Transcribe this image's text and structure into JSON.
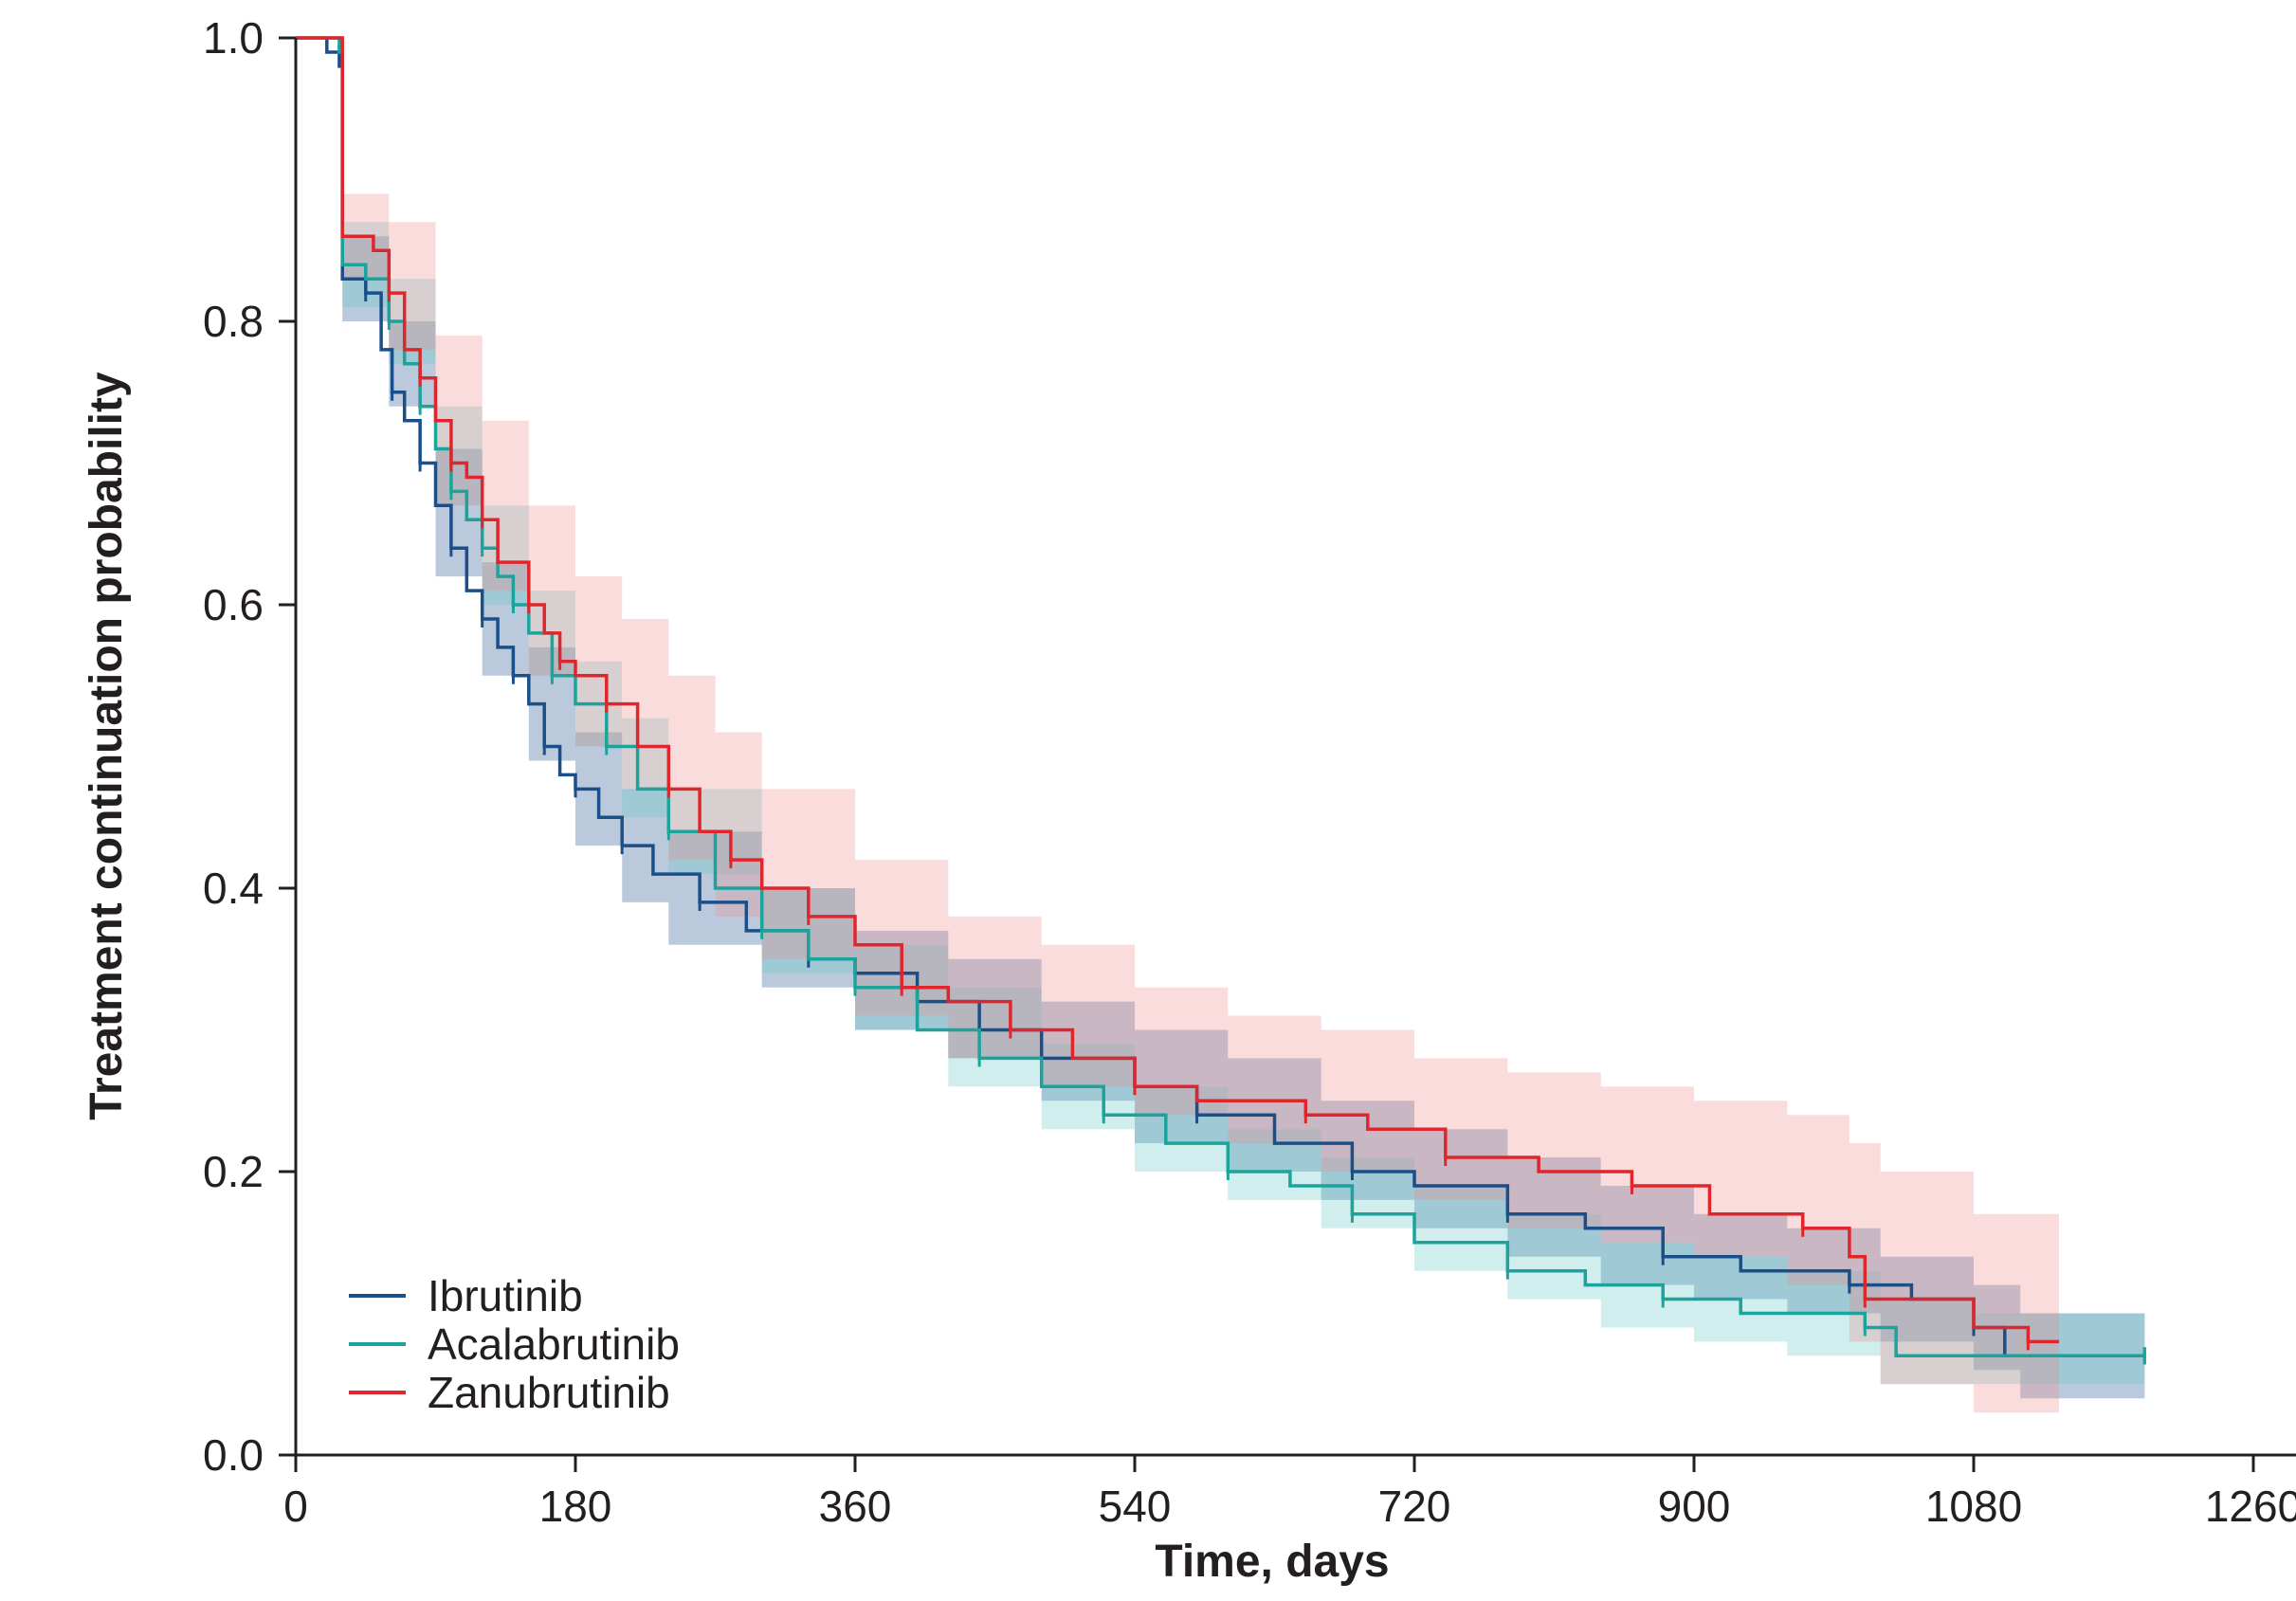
{
  "chart_data": {
    "type": "line",
    "subtype": "kaplan-meier step curves with confidence bands",
    "title": "",
    "xlabel": "Time, days",
    "ylabel": "Treatment continuation probability",
    "xlim": [
      0,
      1260
    ],
    "ylim": [
      0.0,
      1.0
    ],
    "x_ticks": [
      "0",
      "180",
      "360",
      "540",
      "720",
      "900",
      "1080",
      "1260"
    ],
    "y_ticks": [
      "0.0",
      "0.2",
      "0.4",
      "0.6",
      "0.8",
      "1.0"
    ],
    "grid": false,
    "legend_position": "bottom-left",
    "series": [
      {
        "name": "Ibrutinib",
        "color": "#1b4f8a",
        "band_color": "#1b4f8a",
        "points": [
          [
            0,
            1.0
          ],
          [
            20,
            0.99
          ],
          [
            28,
            0.98
          ],
          [
            30,
            0.83
          ],
          [
            45,
            0.82
          ],
          [
            55,
            0.78
          ],
          [
            62,
            0.75
          ],
          [
            70,
            0.73
          ],
          [
            80,
            0.7
          ],
          [
            90,
            0.67
          ],
          [
            100,
            0.64
          ],
          [
            110,
            0.61
          ],
          [
            120,
            0.59
          ],
          [
            130,
            0.57
          ],
          [
            140,
            0.55
          ],
          [
            150,
            0.53
          ],
          [
            160,
            0.5
          ],
          [
            170,
            0.48
          ],
          [
            180,
            0.47
          ],
          [
            195,
            0.45
          ],
          [
            210,
            0.43
          ],
          [
            230,
            0.41
          ],
          [
            260,
            0.39
          ],
          [
            290,
            0.37
          ],
          [
            330,
            0.35
          ],
          [
            360,
            0.34
          ],
          [
            400,
            0.32
          ],
          [
            440,
            0.3
          ],
          [
            480,
            0.28
          ],
          [
            540,
            0.26
          ],
          [
            580,
            0.24
          ],
          [
            630,
            0.22
          ],
          [
            680,
            0.2
          ],
          [
            720,
            0.19
          ],
          [
            780,
            0.17
          ],
          [
            830,
            0.16
          ],
          [
            880,
            0.14
          ],
          [
            930,
            0.13
          ],
          [
            1000,
            0.12
          ],
          [
            1040,
            0.11
          ],
          [
            1080,
            0.09
          ],
          [
            1100,
            0.07
          ],
          [
            1190,
            0.07
          ]
        ],
        "ci_upper": [
          [
            0,
            1.0
          ],
          [
            30,
            0.86
          ],
          [
            60,
            0.8
          ],
          [
            90,
            0.71
          ],
          [
            120,
            0.63
          ],
          [
            150,
            0.57
          ],
          [
            180,
            0.51
          ],
          [
            210,
            0.47
          ],
          [
            240,
            0.44
          ],
          [
            300,
            0.4
          ],
          [
            360,
            0.37
          ],
          [
            420,
            0.35
          ],
          [
            480,
            0.32
          ],
          [
            540,
            0.3
          ],
          [
            600,
            0.28
          ],
          [
            660,
            0.25
          ],
          [
            720,
            0.23
          ],
          [
            780,
            0.21
          ],
          [
            840,
            0.19
          ],
          [
            900,
            0.17
          ],
          [
            960,
            0.16
          ],
          [
            1020,
            0.14
          ],
          [
            1080,
            0.12
          ],
          [
            1110,
            0.1
          ],
          [
            1190,
            0.1
          ]
        ],
        "ci_lower": [
          [
            0,
            1.0
          ],
          [
            30,
            0.8
          ],
          [
            60,
            0.74
          ],
          [
            90,
            0.62
          ],
          [
            120,
            0.55
          ],
          [
            150,
            0.49
          ],
          [
            180,
            0.43
          ],
          [
            210,
            0.39
          ],
          [
            240,
            0.36
          ],
          [
            300,
            0.33
          ],
          [
            360,
            0.3
          ],
          [
            420,
            0.28
          ],
          [
            480,
            0.25
          ],
          [
            540,
            0.22
          ],
          [
            600,
            0.2
          ],
          [
            660,
            0.18
          ],
          [
            720,
            0.16
          ],
          [
            780,
            0.14
          ],
          [
            840,
            0.12
          ],
          [
            900,
            0.11
          ],
          [
            960,
            0.1
          ],
          [
            1020,
            0.08
          ],
          [
            1080,
            0.06
          ],
          [
            1110,
            0.04
          ],
          [
            1190,
            0.04
          ]
        ]
      },
      {
        "name": "Acalabrutinib",
        "color": "#1ba39c",
        "band_color": "#5fc8c4",
        "points": [
          [
            0,
            1.0
          ],
          [
            28,
            0.99
          ],
          [
            30,
            0.84
          ],
          [
            45,
            0.83
          ],
          [
            60,
            0.8
          ],
          [
            70,
            0.77
          ],
          [
            80,
            0.74
          ],
          [
            90,
            0.71
          ],
          [
            100,
            0.68
          ],
          [
            110,
            0.66
          ],
          [
            120,
            0.64
          ],
          [
            130,
            0.62
          ],
          [
            140,
            0.6
          ],
          [
            150,
            0.58
          ],
          [
            165,
            0.55
          ],
          [
            180,
            0.53
          ],
          [
            200,
            0.5
          ],
          [
            220,
            0.47
          ],
          [
            240,
            0.44
          ],
          [
            270,
            0.4
          ],
          [
            300,
            0.37
          ],
          [
            330,
            0.35
          ],
          [
            360,
            0.33
          ],
          [
            400,
            0.3
          ],
          [
            440,
            0.28
          ],
          [
            480,
            0.26
          ],
          [
            520,
            0.24
          ],
          [
            560,
            0.22
          ],
          [
            600,
            0.2
          ],
          [
            640,
            0.19
          ],
          [
            680,
            0.17
          ],
          [
            720,
            0.15
          ],
          [
            780,
            0.13
          ],
          [
            830,
            0.12
          ],
          [
            880,
            0.11
          ],
          [
            930,
            0.1
          ],
          [
            1010,
            0.09
          ],
          [
            1030,
            0.07
          ],
          [
            1190,
            0.07
          ]
        ],
        "ci_upper": [
          [
            0,
            1.0
          ],
          [
            30,
            0.87
          ],
          [
            60,
            0.83
          ],
          [
            90,
            0.74
          ],
          [
            120,
            0.67
          ],
          [
            150,
            0.61
          ],
          [
            180,
            0.56
          ],
          [
            210,
            0.52
          ],
          [
            240,
            0.47
          ],
          [
            300,
            0.4
          ],
          [
            360,
            0.36
          ],
          [
            420,
            0.33
          ],
          [
            480,
            0.29
          ],
          [
            540,
            0.26
          ],
          [
            600,
            0.23
          ],
          [
            660,
            0.21
          ],
          [
            720,
            0.19
          ],
          [
            780,
            0.17
          ],
          [
            840,
            0.15
          ],
          [
            900,
            0.14
          ],
          [
            960,
            0.13
          ],
          [
            1020,
            0.11
          ],
          [
            1080,
            0.1
          ],
          [
            1190,
            0.1
          ]
        ],
        "ci_lower": [
          [
            0,
            1.0
          ],
          [
            30,
            0.81
          ],
          [
            60,
            0.77
          ],
          [
            90,
            0.67
          ],
          [
            120,
            0.6
          ],
          [
            150,
            0.55
          ],
          [
            180,
            0.5
          ],
          [
            210,
            0.45
          ],
          [
            240,
            0.41
          ],
          [
            300,
            0.34
          ],
          [
            360,
            0.3
          ],
          [
            420,
            0.26
          ],
          [
            480,
            0.23
          ],
          [
            540,
            0.2
          ],
          [
            600,
            0.18
          ],
          [
            660,
            0.16
          ],
          [
            720,
            0.13
          ],
          [
            780,
            0.11
          ],
          [
            840,
            0.09
          ],
          [
            900,
            0.08
          ],
          [
            960,
            0.07
          ],
          [
            1020,
            0.05
          ],
          [
            1080,
            0.05
          ],
          [
            1190,
            0.05
          ]
        ]
      },
      {
        "name": "Zanubrutinib",
        "color": "#e0262d",
        "band_color": "#f08a8f",
        "points": [
          [
            0,
            1.0
          ],
          [
            28,
            1.0
          ],
          [
            30,
            0.86
          ],
          [
            50,
            0.85
          ],
          [
            60,
            0.82
          ],
          [
            70,
            0.78
          ],
          [
            80,
            0.76
          ],
          [
            90,
            0.73
          ],
          [
            100,
            0.7
          ],
          [
            110,
            0.69
          ],
          [
            120,
            0.66
          ],
          [
            130,
            0.63
          ],
          [
            150,
            0.6
          ],
          [
            160,
            0.58
          ],
          [
            170,
            0.56
          ],
          [
            180,
            0.55
          ],
          [
            200,
            0.53
          ],
          [
            220,
            0.5
          ],
          [
            240,
            0.47
          ],
          [
            260,
            0.44
          ],
          [
            280,
            0.42
          ],
          [
            300,
            0.4
          ],
          [
            330,
            0.38
          ],
          [
            360,
            0.36
          ],
          [
            390,
            0.33
          ],
          [
            420,
            0.32
          ],
          [
            460,
            0.3
          ],
          [
            500,
            0.28
          ],
          [
            540,
            0.26
          ],
          [
            580,
            0.25
          ],
          [
            650,
            0.24
          ],
          [
            690,
            0.23
          ],
          [
            740,
            0.21
          ],
          [
            800,
            0.2
          ],
          [
            860,
            0.19
          ],
          [
            910,
            0.17
          ],
          [
            970,
            0.16
          ],
          [
            1000,
            0.14
          ],
          [
            1010,
            0.11
          ],
          [
            1080,
            0.09
          ],
          [
            1115,
            0.08
          ],
          [
            1135,
            0.08
          ]
        ],
        "ci_upper": [
          [
            0,
            1.0
          ],
          [
            30,
            0.89
          ],
          [
            60,
            0.87
          ],
          [
            90,
            0.79
          ],
          [
            120,
            0.73
          ],
          [
            150,
            0.67
          ],
          [
            180,
            0.62
          ],
          [
            210,
            0.59
          ],
          [
            240,
            0.55
          ],
          [
            270,
            0.51
          ],
          [
            300,
            0.47
          ],
          [
            360,
            0.42
          ],
          [
            420,
            0.38
          ],
          [
            480,
            0.36
          ],
          [
            540,
            0.33
          ],
          [
            600,
            0.31
          ],
          [
            660,
            0.3
          ],
          [
            720,
            0.28
          ],
          [
            780,
            0.27
          ],
          [
            840,
            0.26
          ],
          [
            900,
            0.25
          ],
          [
            960,
            0.24
          ],
          [
            1000,
            0.22
          ],
          [
            1020,
            0.2
          ],
          [
            1080,
            0.17
          ],
          [
            1135,
            0.17
          ]
        ],
        "ci_lower": [
          [
            0,
            1.0
          ],
          [
            30,
            0.83
          ],
          [
            60,
            0.78
          ],
          [
            90,
            0.67
          ],
          [
            120,
            0.61
          ],
          [
            150,
            0.55
          ],
          [
            180,
            0.5
          ],
          [
            210,
            0.47
          ],
          [
            240,
            0.42
          ],
          [
            270,
            0.38
          ],
          [
            300,
            0.35
          ],
          [
            360,
            0.31
          ],
          [
            420,
            0.28
          ],
          [
            480,
            0.26
          ],
          [
            540,
            0.24
          ],
          [
            600,
            0.22
          ],
          [
            660,
            0.2
          ],
          [
            720,
            0.18
          ],
          [
            780,
            0.16
          ],
          [
            840,
            0.15
          ],
          [
            900,
            0.14
          ],
          [
            960,
            0.12
          ],
          [
            1000,
            0.08
          ],
          [
            1020,
            0.05
          ],
          [
            1080,
            0.03
          ],
          [
            1135,
            0.03
          ]
        ]
      }
    ]
  }
}
